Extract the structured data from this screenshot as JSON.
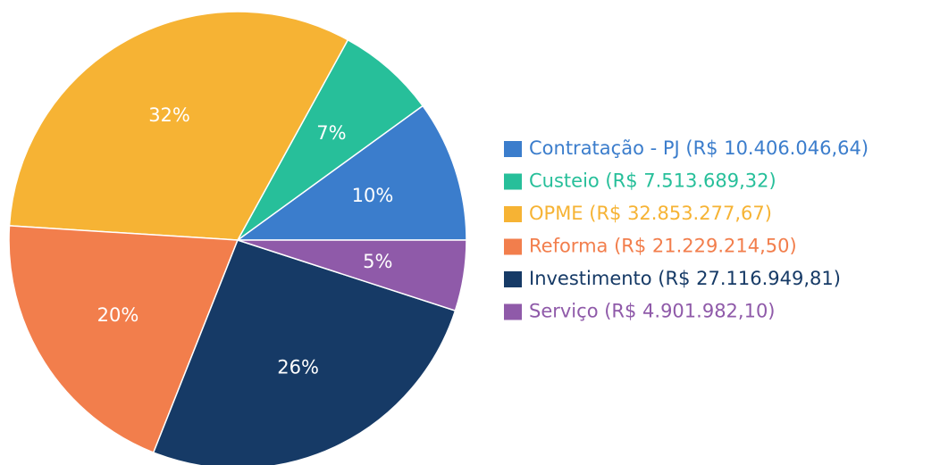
{
  "chart_data": {
    "type": "pie",
    "categories": [
      "Contratação - PJ (R$ 10.406.046,64)",
      "Custeio (R$ 7.513.689,32)",
      "OPME (R$ 32.853.277,67)",
      "Reforma (R$ 21.229.214,50)",
      "Investimento (R$ 27.116.949,81)",
      "Serviço (R$ 4.901.982,10)"
    ],
    "values": [
      10,
      7,
      32,
      20,
      26,
      5
    ],
    "value_labels": [
      "10%",
      "7%",
      "32%",
      "20%",
      "26%",
      "5%"
    ],
    "colors": [
      "#3b7dcc",
      "#27bf9a",
      "#f6b334",
      "#f27e4c",
      "#163a66",
      "#8f5aa9"
    ],
    "legend": "right"
  }
}
